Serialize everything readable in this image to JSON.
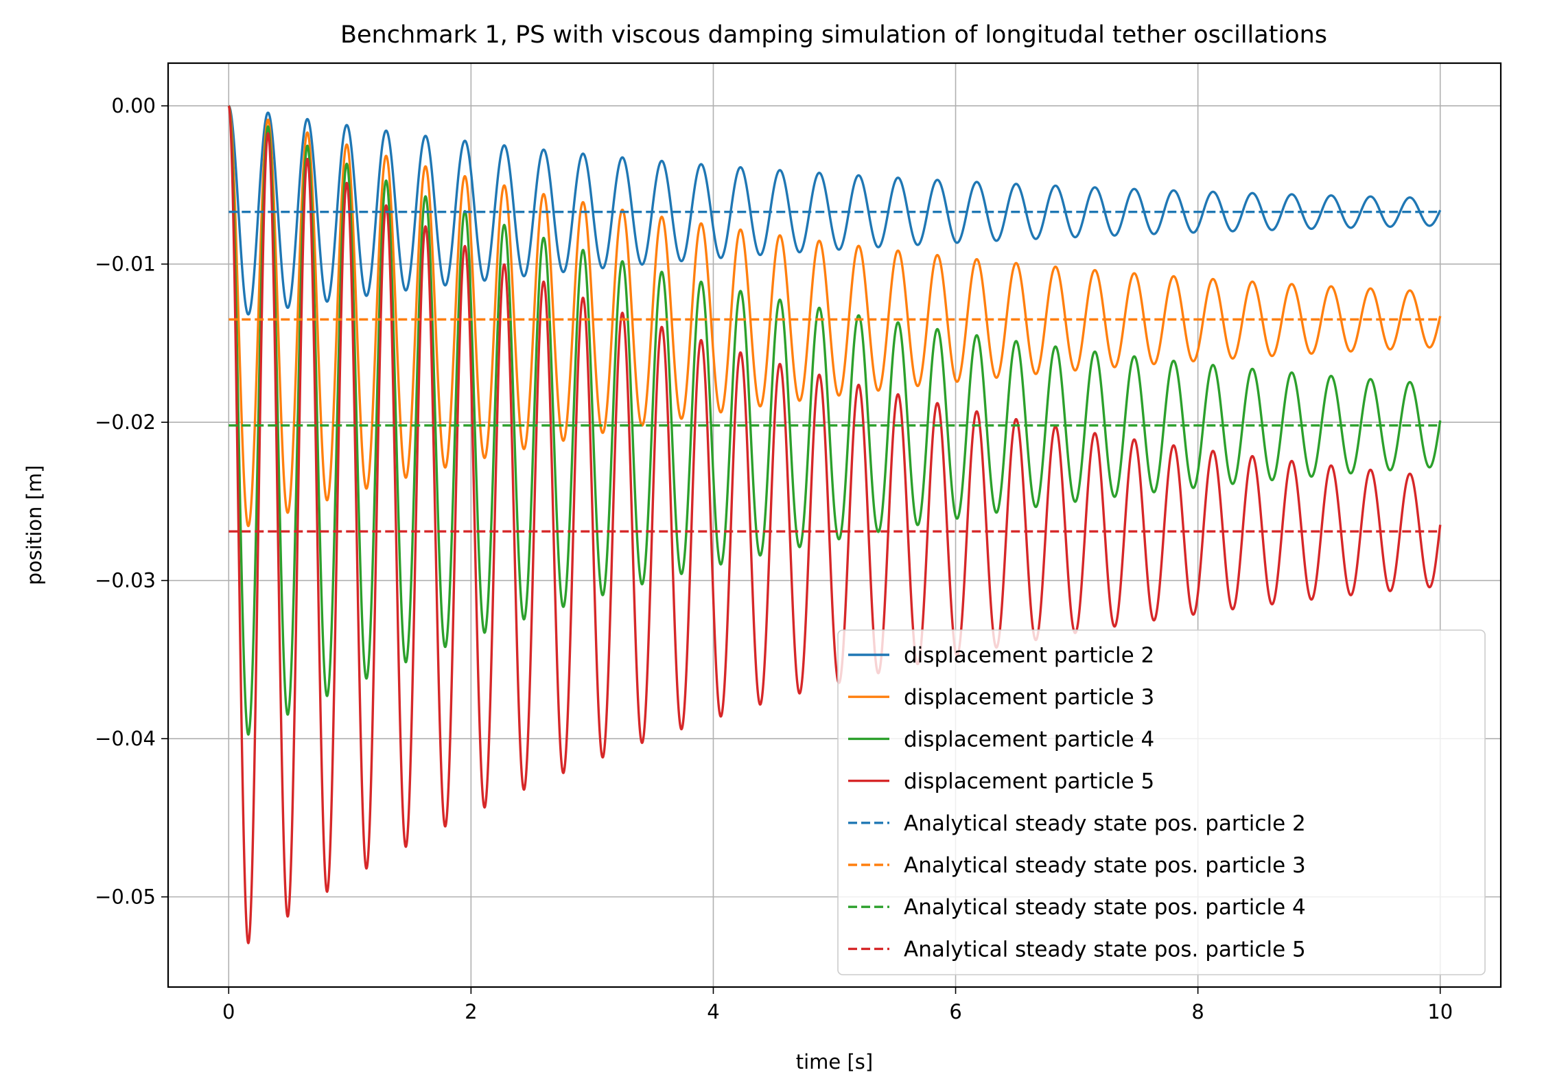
{
  "chart_data": {
    "type": "line",
    "title": "Benchmark 1, PS with viscous damping simulation of longitudal tether oscillations",
    "xlabel": "time [s]",
    "ylabel": "position [m]",
    "xlim": [
      -0.5,
      10.5
    ],
    "ylim": [
      -0.0557,
      0.0027
    ],
    "xticks": [
      0,
      2,
      4,
      6,
      8,
      10
    ],
    "xtick_labels": [
      "0",
      "2",
      "4",
      "6",
      "8",
      "10"
    ],
    "yticks": [
      0.0,
      -0.01,
      -0.02,
      -0.03,
      -0.04,
      -0.05
    ],
    "ytick_labels": [
      "0.00",
      "−0.01",
      "−0.02",
      "−0.03",
      "−0.04",
      "−0.05"
    ],
    "grid": true,
    "legend_position": "bottom-right",
    "oscillation": {
      "t_end": 10,
      "period": 0.325,
      "decay_rate": 0.205
    },
    "series": [
      {
        "name": "displacement particle 2",
        "style": "solid",
        "color": "#1f77b4",
        "steady_state": -0.0067,
        "amplitude": 0.0067
      },
      {
        "name": "displacement particle 3",
        "style": "solid",
        "color": "#ff7f0e",
        "steady_state": -0.0135,
        "amplitude": 0.0135
      },
      {
        "name": "displacement particle 4",
        "style": "solid",
        "color": "#2ca02c",
        "steady_state": -0.0202,
        "amplitude": 0.0202
      },
      {
        "name": "displacement particle 5",
        "style": "solid",
        "color": "#d62728",
        "steady_state": -0.0269,
        "amplitude": 0.0269
      },
      {
        "name": "Analytical steady state pos. particle 2",
        "style": "dashed",
        "color": "#1f77b4",
        "value": -0.0067
      },
      {
        "name": "Analytical steady state pos. particle 3",
        "style": "dashed",
        "color": "#ff7f0e",
        "value": -0.0135
      },
      {
        "name": "Analytical steady state pos. particle 4",
        "style": "dashed",
        "color": "#2ca02c",
        "value": -0.0202
      },
      {
        "name": "Analytical steady state pos. particle 5",
        "style": "dashed",
        "color": "#d62728",
        "value": -0.0269
      }
    ]
  }
}
